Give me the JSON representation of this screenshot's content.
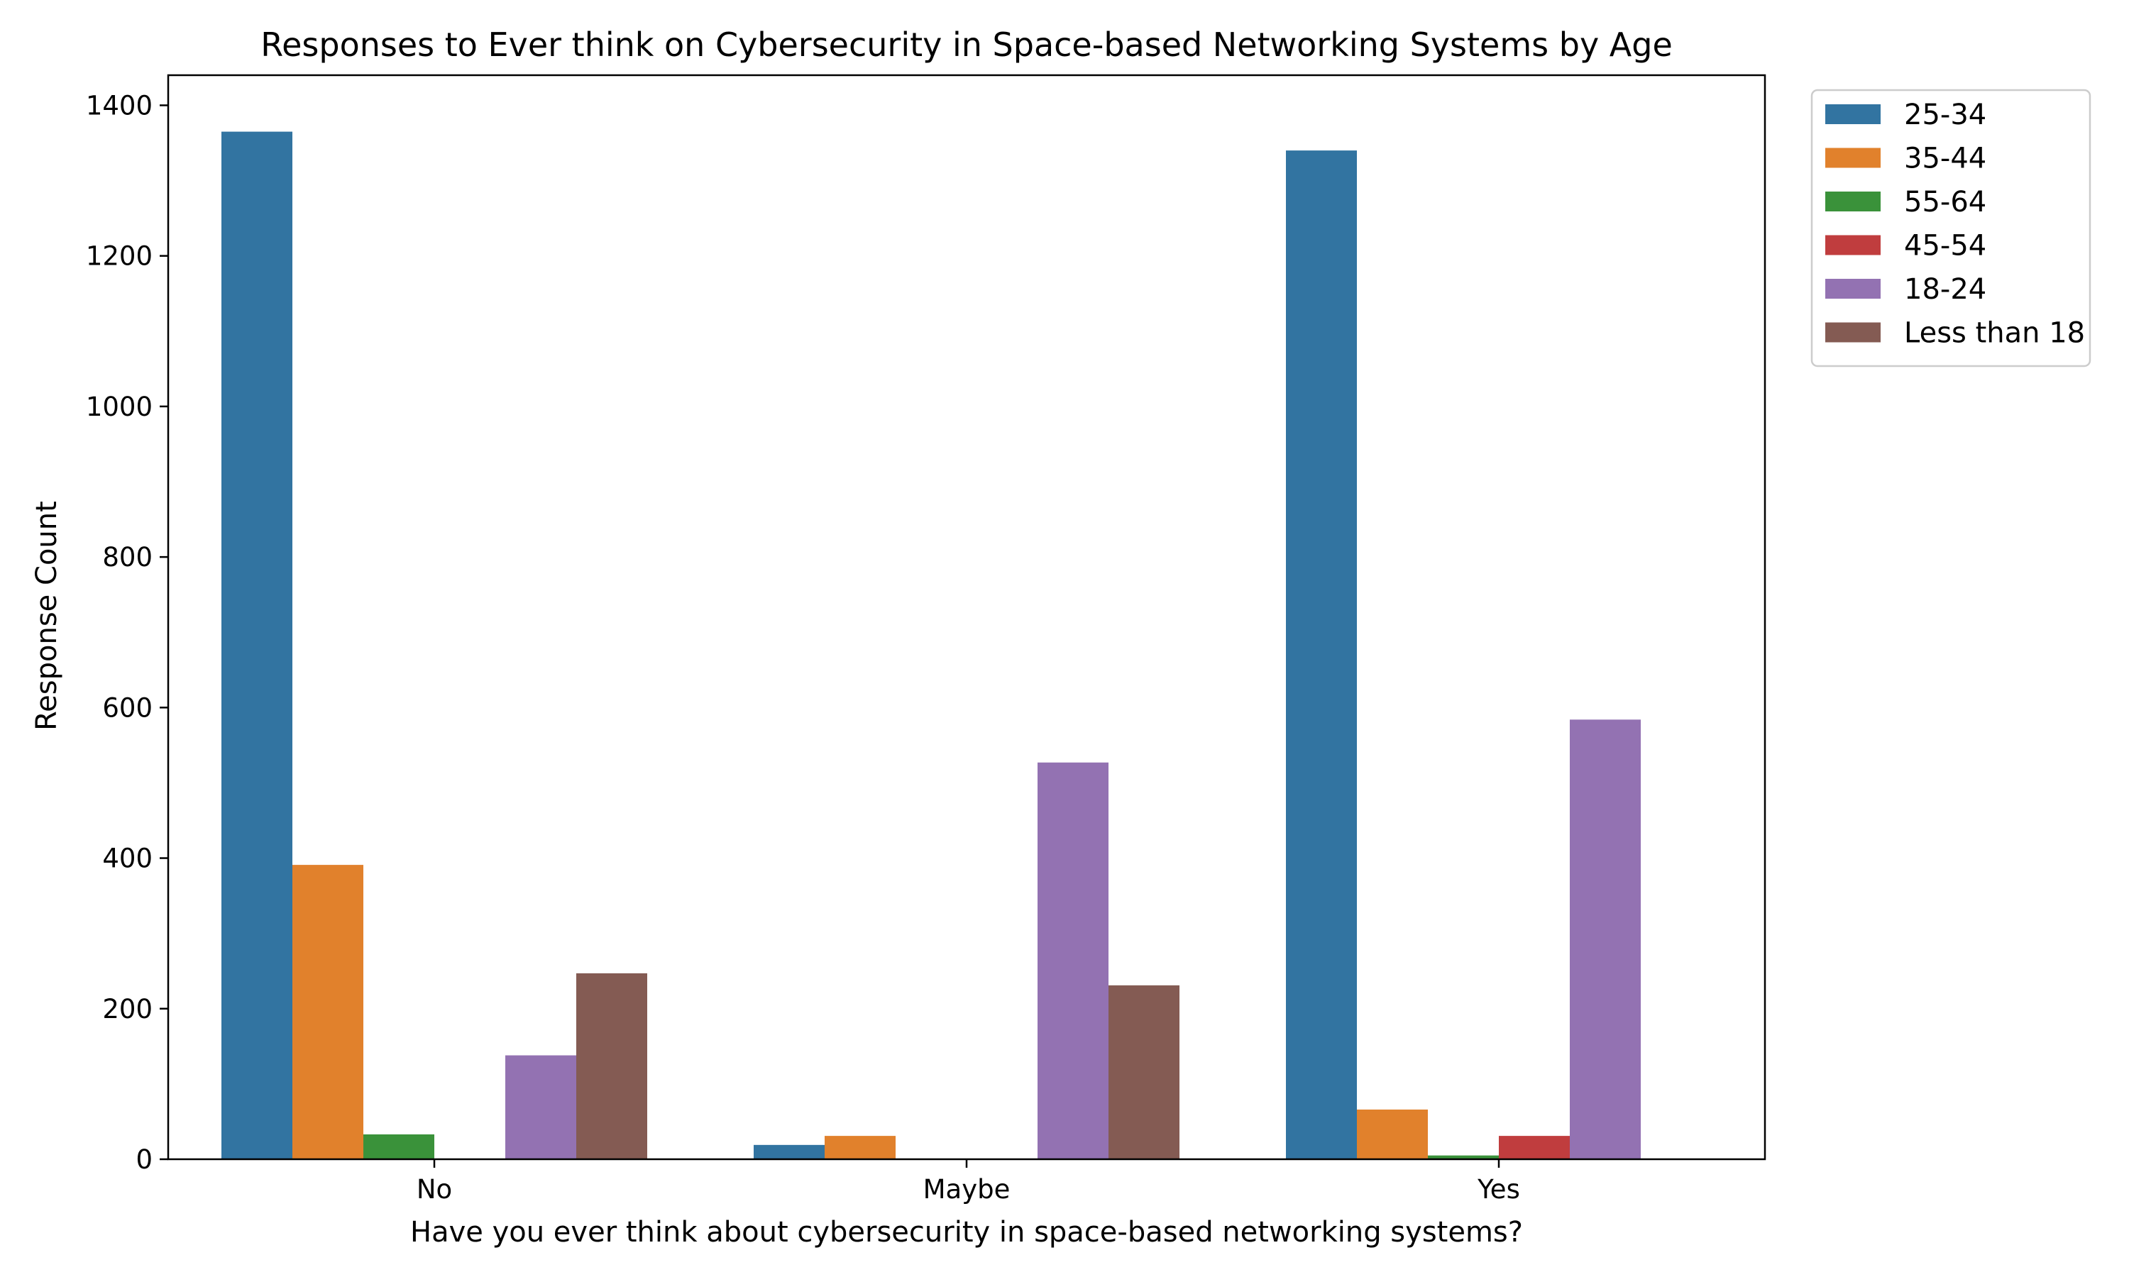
{
  "chart_data": {
    "type": "bar",
    "title": "Responses to Ever think on Cybersecurity in Space-based Networking Systems by Age",
    "xlabel": "Have you ever think about cybersecurity in space-based networking systems?",
    "ylabel": "Response Count",
    "categories": [
      "No",
      "Maybe",
      "Yes"
    ],
    "ylim": [
      0,
      1440
    ],
    "yticks": [
      0,
      200,
      400,
      600,
      800,
      1000,
      1200,
      1400
    ],
    "grid": false,
    "legend_position": "outside-top-right",
    "series": [
      {
        "name": "25-34",
        "color": "#3274a1",
        "values": [
          1365,
          19,
          1340
        ]
      },
      {
        "name": "35-44",
        "color": "#e1812c",
        "values": [
          391,
          31,
          66
        ]
      },
      {
        "name": "55-64",
        "color": "#3a923a",
        "values": [
          33,
          0,
          5
        ]
      },
      {
        "name": "45-54",
        "color": "#c03d3e",
        "values": [
          0,
          0,
          31
        ]
      },
      {
        "name": "18-24",
        "color": "#9372b2",
        "values": [
          138,
          527,
          584
        ]
      },
      {
        "name": "Less than 18",
        "color": "#845b53",
        "values": [
          247,
          231,
          0
        ]
      }
    ]
  }
}
